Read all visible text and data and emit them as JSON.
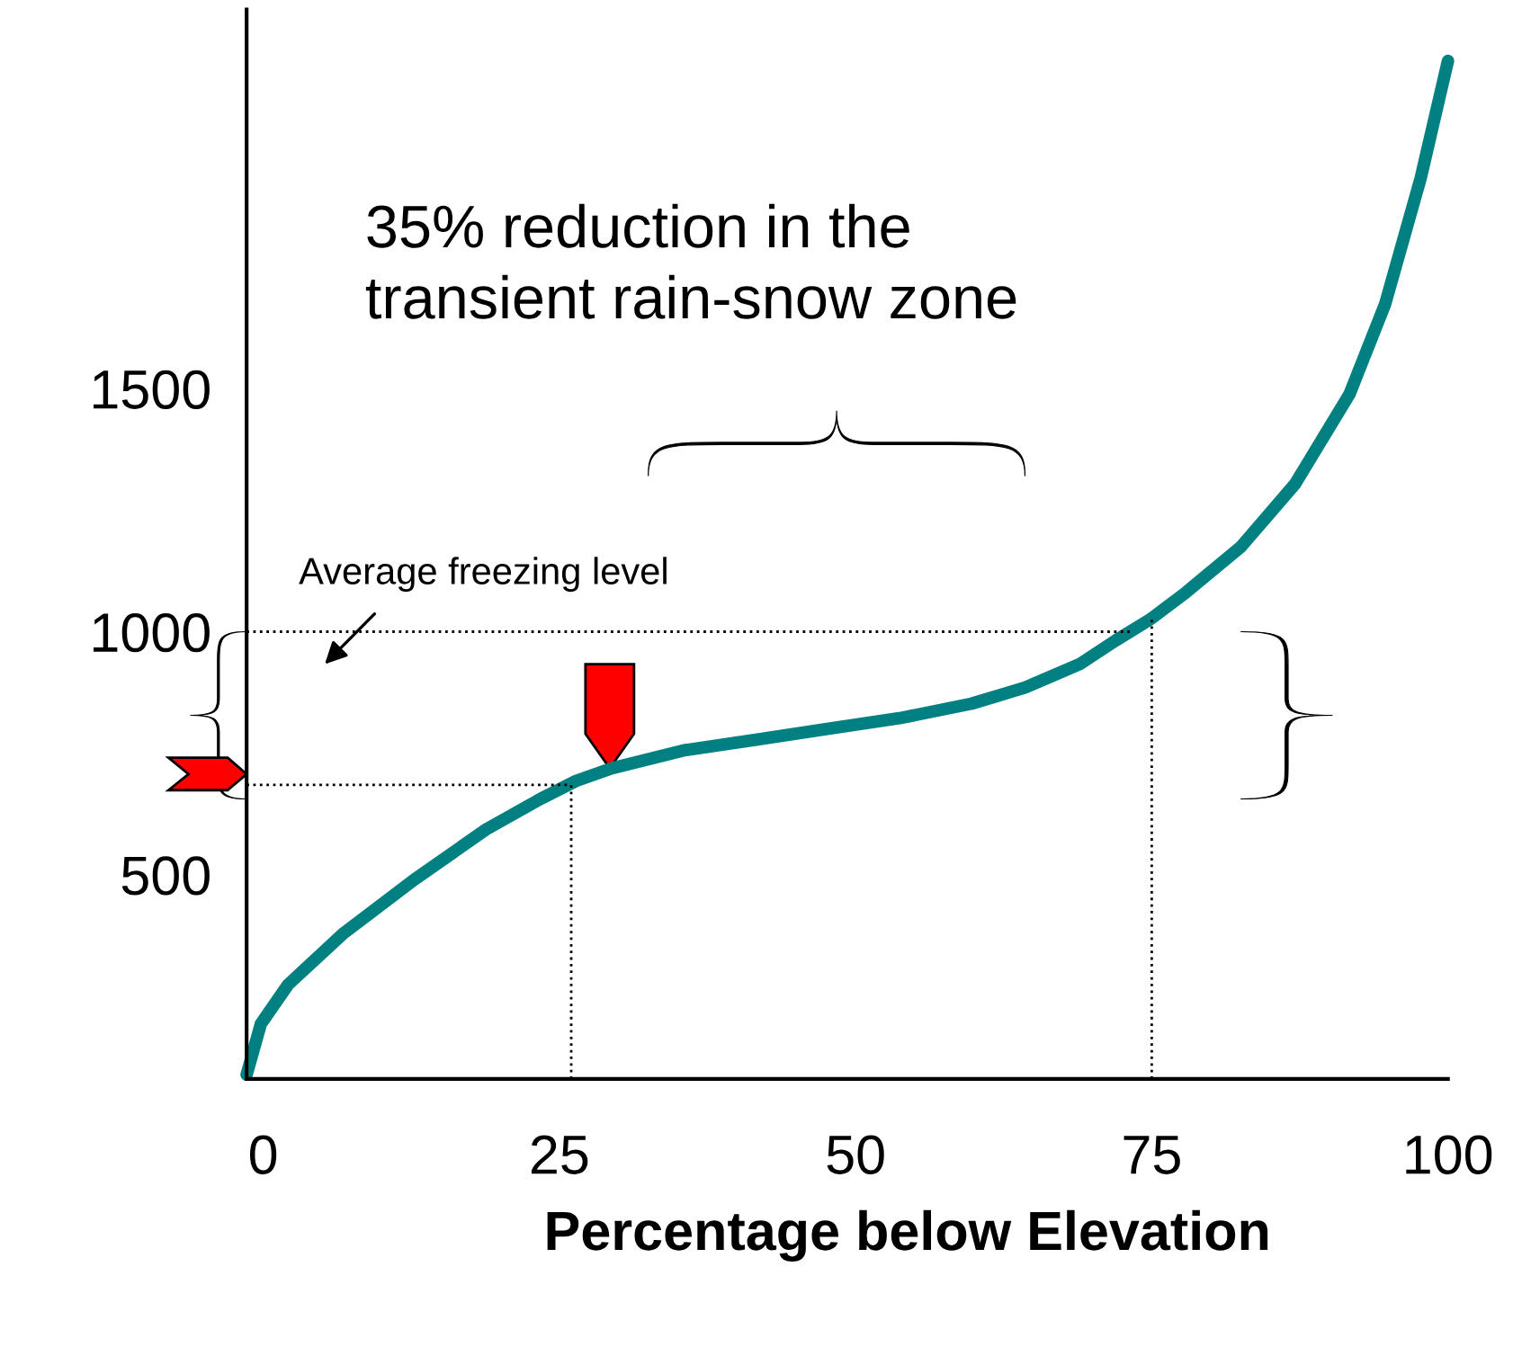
{
  "chart_data": {
    "type": "line",
    "xlabel": "Percentage below Elevation",
    "x": [
      -1.4,
      -0.2,
      2.1,
      6.7,
      12.7,
      18.8,
      23.4,
      26.4,
      29.4,
      35.5,
      41.6,
      47.6,
      53.7,
      59.8,
      64.3,
      68.9,
      71.9,
      74.9,
      77.9,
      82.5,
      87.1,
      91.7,
      94.7,
      97.7,
      100
    ],
    "series": [
      {
        "color": "#008080",
        "values": [
          89,
          193,
          274,
          378,
          489,
          593,
          656,
          693,
          719,
          756,
          778,
          800,
          822,
          852,
          885,
          933,
          981,
          1026,
          1081,
          1174,
          1304,
          1489,
          1674,
          1933,
          2174
        ]
      }
    ],
    "xlim": [
      -1.4,
      100
    ],
    "ylim": [
      80,
      2280
    ],
    "xticks": [
      0,
      25,
      50,
      75,
      100
    ],
    "yticks": [
      500,
      1000,
      1500
    ],
    "ref_lines": [
      {
        "axis": "y",
        "value": 1000,
        "line_style": "dotted",
        "color": "#000000"
      },
      {
        "axis": "y",
        "value": 685,
        "line_style": "dotted",
        "color": "#000000"
      },
      {
        "axis": "x",
        "value": 26,
        "line_style": "dotted",
        "color": "#000000"
      },
      {
        "axis": "x",
        "value": 75,
        "line_style": "dotted",
        "color": "#000000"
      }
    ],
    "annotations": [
      "35% reduction in the\ntransient rain-snow zone",
      "Average freezing level"
    ],
    "grid": false,
    "legend": false,
    "line_style": "solid",
    "marker": "none"
  }
}
